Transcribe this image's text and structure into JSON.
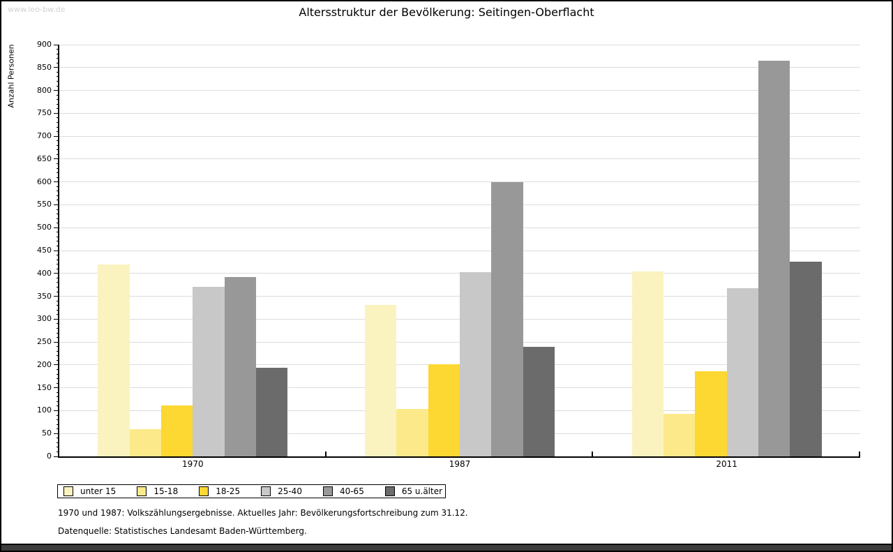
{
  "page": {
    "site_url": "www.leo-bw.de"
  },
  "chart_data": {
    "type": "bar",
    "title": "Altersstruktur der Bevölkerung: Seitingen-Oberflacht",
    "ylabel": "Anzahl Personen",
    "categories": [
      "1970",
      "1987",
      "2011"
    ],
    "series": [
      {
        "name": "unter 15",
        "color": "#faf3c0",
        "values": [
          420,
          331,
          405
        ]
      },
      {
        "name": "15-18",
        "color": "#fce98a",
        "values": [
          60,
          103,
          93
        ]
      },
      {
        "name": "18-25",
        "color": "#fdd732",
        "values": [
          112,
          201,
          186
        ]
      },
      {
        "name": "25-40",
        "color": "#c8c8c8",
        "values": [
          371,
          402,
          368
        ]
      },
      {
        "name": "40-65",
        "color": "#989898",
        "values": [
          392,
          600,
          865
        ]
      },
      {
        "name": "65 u.älter",
        "color": "#6b6b6b",
        "values": [
          193,
          239,
          425
        ]
      }
    ],
    "ylim": [
      0,
      900
    ],
    "ytick_major": 50,
    "ytick_minor": 10,
    "grid": true,
    "gridline_color": "#dcdcdc",
    "legend_position": "bottom"
  },
  "footnotes": [
    "1970 und 1987: Volkszählungsergebnisse. Aktuelles Jahr: Bevölkerungsfortschreibung zum 31.12.",
    "Datenquelle: Statistisches Landesamt Baden-Württemberg."
  ]
}
